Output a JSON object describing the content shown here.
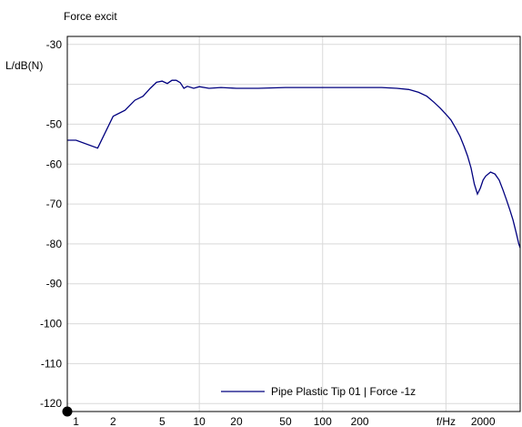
{
  "chart_data": {
    "type": "line",
    "title": "Force excit",
    "ylabel": "L/dB(N)",
    "xlabel": "f/Hz",
    "xscale": "log",
    "xlim": [
      0.85,
      4000
    ],
    "ylim": [
      -122,
      -28
    ],
    "grid": true,
    "x_ticks": [
      {
        "value": 1,
        "label": "1"
      },
      {
        "value": 2,
        "label": "2"
      },
      {
        "value": 5,
        "label": "5"
      },
      {
        "value": 10,
        "label": "10"
      },
      {
        "value": 20,
        "label": "20"
      },
      {
        "value": 50,
        "label": "50"
      },
      {
        "value": 100,
        "label": "100"
      },
      {
        "value": 200,
        "label": "200"
      },
      {
        "value": 1000,
        "label": "f/Hz"
      },
      {
        "value": 2000,
        "label": "2000"
      }
    ],
    "y_ticks": [
      {
        "value": -30,
        "label": "-30"
      },
      {
        "value": -50,
        "label": "-50"
      },
      {
        "value": -60,
        "label": "-60"
      },
      {
        "value": -70,
        "label": "-70"
      },
      {
        "value": -80,
        "label": "-80"
      },
      {
        "value": -90,
        "label": "-90"
      },
      {
        "value": -100,
        "label": "-100"
      },
      {
        "value": -110,
        "label": "-110"
      },
      {
        "value": -120,
        "label": "-120"
      }
    ],
    "legend_position": "bottom-center",
    "series": [
      {
        "name": "Pipe Plastic Tip 01  |  Force -1z",
        "color": "#00007f",
        "x": [
          0.85,
          1,
          1.5,
          2,
          2.5,
          3,
          3.5,
          4,
          4.5,
          5,
          5.5,
          6,
          6.5,
          7,
          7.5,
          8,
          9,
          10,
          12,
          15,
          20,
          30,
          50,
          100,
          200,
          300,
          400,
          500,
          600,
          700,
          800,
          900,
          1000,
          1100,
          1200,
          1300,
          1400,
          1500,
          1600,
          1700,
          1800,
          1900,
          2000,
          2100,
          2300,
          2500,
          2700,
          2900,
          3100,
          3300,
          3500,
          3700,
          3900,
          4000
        ],
        "y": [
          -54.0,
          -54.0,
          -56.0,
          -48.0,
          -46.5,
          -44.0,
          -43.0,
          -41.0,
          -39.5,
          -39.2,
          -39.8,
          -39.0,
          -39.0,
          -39.6,
          -41.0,
          -40.5,
          -41.0,
          -40.6,
          -41.0,
          -40.8,
          -41.0,
          -41.0,
          -40.8,
          -40.8,
          -40.8,
          -40.8,
          -41.0,
          -41.3,
          -42.0,
          -43.0,
          -44.5,
          -46.0,
          -47.5,
          -49.0,
          -51.0,
          -53.0,
          -55.5,
          -58.0,
          -61.0,
          -65.0,
          -67.5,
          -66.0,
          -64.0,
          -63.0,
          -62.0,
          -62.5,
          -64.0,
          -66.5,
          -69.0,
          -71.5,
          -74.0,
          -77.0,
          -80.0,
          -81.0
        ]
      }
    ]
  }
}
